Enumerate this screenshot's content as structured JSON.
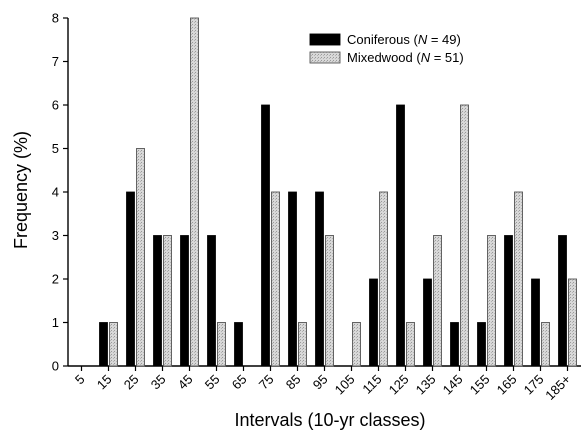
{
  "chart_data": {
    "type": "bar",
    "xlabel": "Intervals (10-yr classes)",
    "ylabel": "Frequency (%)",
    "ylim": [
      0,
      8
    ],
    "yticks": [
      0,
      1,
      2,
      3,
      4,
      5,
      6,
      7,
      8
    ],
    "categories": [
      "5",
      "15",
      "25",
      "35",
      "45",
      "55",
      "65",
      "75",
      "85",
      "95",
      "105",
      "115",
      "125",
      "135",
      "145",
      "155",
      "165",
      "175",
      "185+"
    ],
    "series": [
      {
        "name": "Coniferous",
        "legend_label_parts": [
          "Coniferous (",
          "N",
          " = 49)"
        ],
        "color": "#000000",
        "values": [
          0,
          1,
          4,
          3,
          3,
          3,
          1,
          6,
          4,
          4,
          0,
          2,
          6,
          2,
          1,
          1,
          3,
          2,
          3
        ]
      },
      {
        "name": "Mixedwood",
        "legend_label_parts": [
          "Mixedwood (",
          "N",
          " = 51)"
        ],
        "color": "#cccccc",
        "values": [
          0,
          1,
          5,
          3,
          8,
          1,
          0,
          4,
          1,
          3,
          1,
          4,
          1,
          3,
          6,
          3,
          4,
          1,
          2
        ]
      }
    ],
    "legend_position": "top-right",
    "grid": false
  }
}
